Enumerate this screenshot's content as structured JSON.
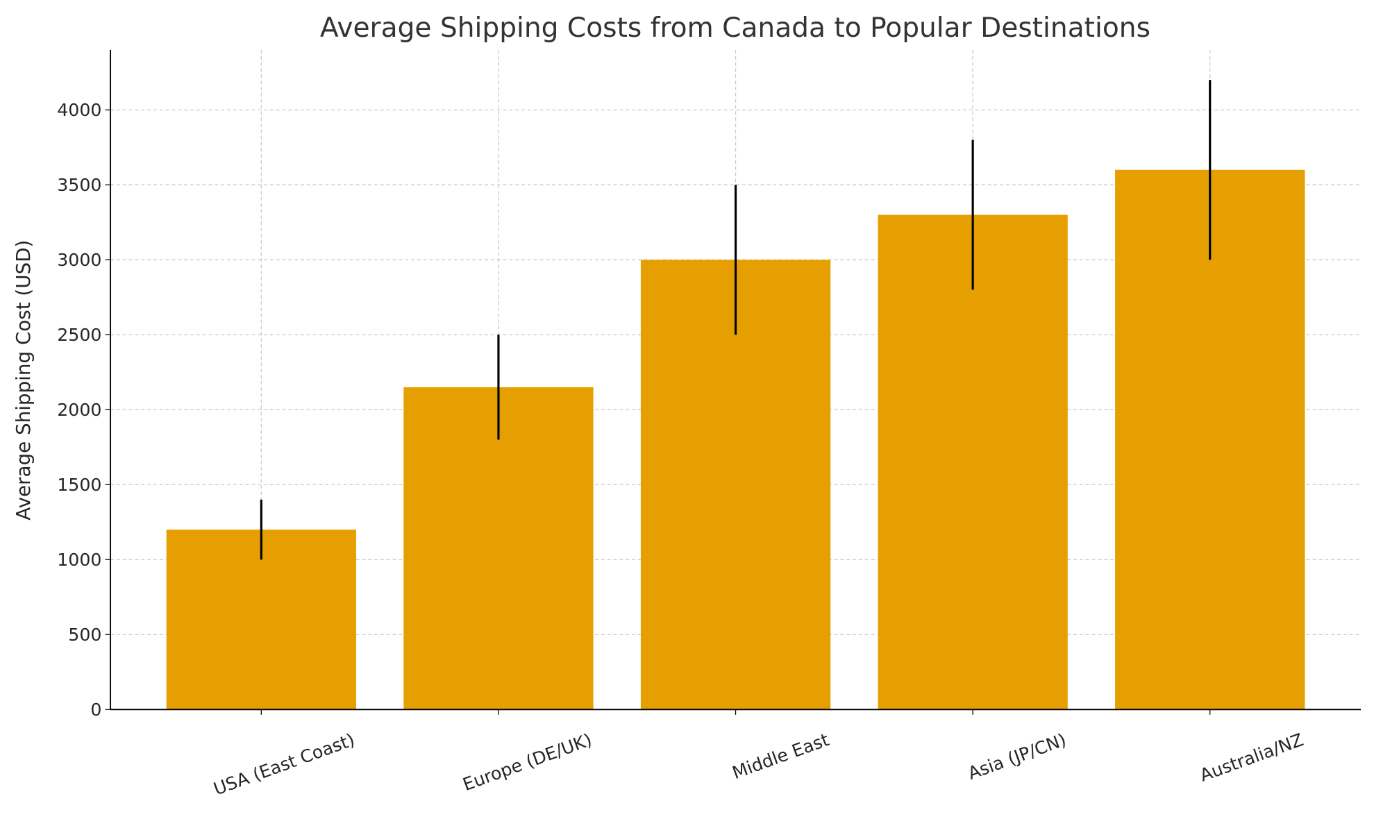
{
  "chart_data": {
    "type": "bar",
    "title": "Average Shipping Costs from Canada to Popular Destinations",
    "xlabel": "",
    "ylabel": "Average Shipping Cost (USD)",
    "categories": [
      "USA (East Coast)",
      "Europe (DE/UK)",
      "Middle East",
      "Asia (JP/CN)",
      "Australia/NZ"
    ],
    "values": [
      1200,
      2150,
      3000,
      3300,
      3600
    ],
    "errors": [
      200,
      350,
      500,
      500,
      600
    ],
    "ylim": [
      0,
      4400
    ],
    "yticks": [
      0,
      500,
      1000,
      1500,
      2000,
      2500,
      3000,
      3500,
      4000
    ],
    "grid": true,
    "bar_color": "#E69F00",
    "error_color": "#000000"
  }
}
